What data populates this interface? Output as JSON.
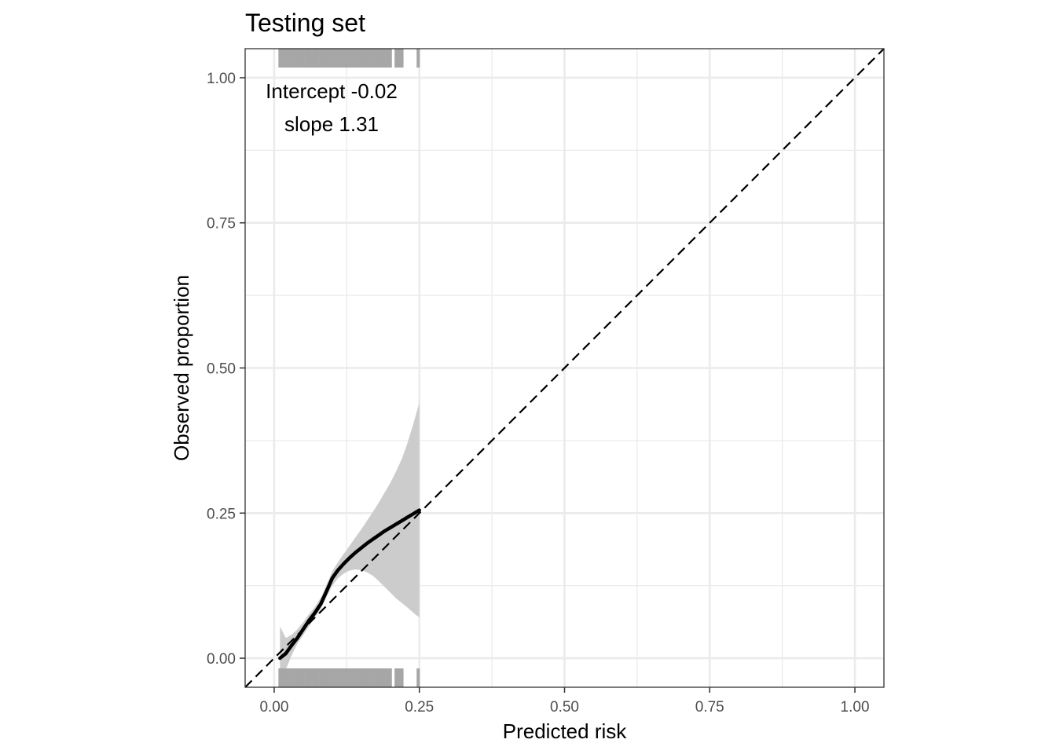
{
  "chart_data": {
    "type": "line",
    "title": "Testing set",
    "xlabel": "Predicted risk",
    "ylabel": "Observed proportion",
    "xlim": [
      -0.05,
      1.05
    ],
    "ylim": [
      -0.05,
      1.05
    ],
    "x_ticks": [
      "0.00",
      "0.25",
      "0.50",
      "0.75",
      "1.00"
    ],
    "y_ticks": [
      "0.00",
      "0.25",
      "0.50",
      "0.75",
      "1.00"
    ],
    "x_tick_values": [
      0,
      0.25,
      0.5,
      0.75,
      1.0
    ],
    "y_tick_values": [
      0,
      0.25,
      0.5,
      0.75,
      1.0
    ],
    "grid": true,
    "annotation": [
      "Intercept -0.02",
      "slope 1.31"
    ],
    "reference_line": {
      "x": [
        -0.05,
        1.05
      ],
      "y": [
        -0.05,
        1.05
      ],
      "style": "dashed"
    },
    "series": [
      {
        "x": [
          0.01,
          0.02,
          0.03,
          0.04,
          0.05,
          0.06,
          0.07,
          0.08,
          0.09,
          0.1,
          0.11,
          0.12,
          0.13,
          0.14,
          0.15,
          0.16,
          0.17,
          0.18,
          0.19,
          0.2,
          0.21,
          0.22,
          0.23,
          0.24,
          0.25
        ],
        "y": [
          0.0,
          0.008,
          0.022,
          0.035,
          0.05,
          0.065,
          0.078,
          0.093,
          0.115,
          0.138,
          0.152,
          0.163,
          0.173,
          0.182,
          0.19,
          0.198,
          0.205,
          0.212,
          0.219,
          0.225,
          0.231,
          0.237,
          0.243,
          0.249,
          0.255
        ],
        "ci_low": [
          -0.04,
          -0.02,
          0.005,
          0.025,
          0.04,
          0.055,
          0.07,
          0.085,
          0.105,
          0.125,
          0.138,
          0.146,
          0.151,
          0.153,
          0.152,
          0.148,
          0.142,
          0.133,
          0.123,
          0.113,
          0.103,
          0.095,
          0.087,
          0.078,
          0.07
        ],
        "ci_high": [
          0.055,
          0.035,
          0.04,
          0.05,
          0.062,
          0.076,
          0.088,
          0.104,
          0.126,
          0.15,
          0.166,
          0.18,
          0.194,
          0.208,
          0.222,
          0.237,
          0.252,
          0.268,
          0.285,
          0.302,
          0.322,
          0.344,
          0.372,
          0.405,
          0.44
        ]
      }
    ],
    "rug_x": [
      0.01,
      0.015,
      0.02,
      0.025,
      0.03,
      0.035,
      0.04,
      0.045,
      0.05,
      0.055,
      0.06,
      0.065,
      0.07,
      0.075,
      0.08,
      0.085,
      0.09,
      0.095,
      0.1,
      0.105,
      0.11,
      0.115,
      0.12,
      0.125,
      0.13,
      0.135,
      0.14,
      0.145,
      0.15,
      0.155,
      0.16,
      0.165,
      0.17,
      0.175,
      0.18,
      0.185,
      0.19,
      0.195,
      0.2,
      0.21,
      0.215,
      0.22,
      0.248
    ],
    "colors": {
      "line": "#000000",
      "ribbon": "#cccccc",
      "rug": "#a6a6a6",
      "grid": "#ebebeb",
      "panel_border": "#333333",
      "reference": "#000000"
    }
  }
}
